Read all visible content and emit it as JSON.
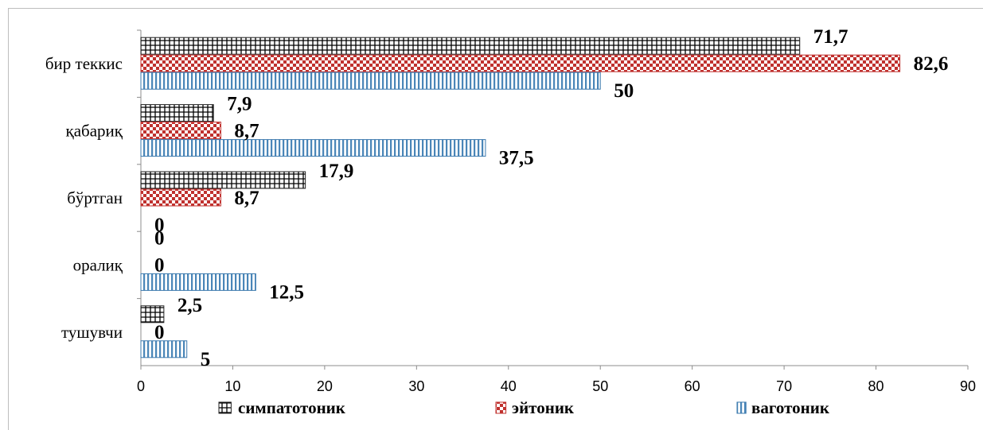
{
  "chart_data": {
    "type": "bar",
    "orientation": "horizontal",
    "categories": [
      "бир теккис",
      "қабариқ",
      "бўртган",
      "оралиқ",
      "тушувчи"
    ],
    "series": [
      {
        "name": "симпатотоник",
        "values": [
          71.7,
          7.9,
          17.9,
          0,
          2.5
        ],
        "labels": [
          "71,7",
          "7,9",
          "17,9",
          "0",
          "2,5"
        ],
        "color": "#000000",
        "pattern": "grid"
      },
      {
        "name": "эйтоник",
        "values": [
          82.6,
          8.7,
          8.7,
          0,
          0
        ],
        "labels": [
          "82,6",
          "8,7",
          "8,7",
          "0",
          "0"
        ],
        "color": "#c0312e",
        "pattern": "checker"
      },
      {
        "name": "ваготоник",
        "values": [
          50,
          37.5,
          0,
          12.5,
          5
        ],
        "labels": [
          "50",
          "37,5",
          "0",
          "12,5",
          "5"
        ],
        "color": "#4a86b8",
        "pattern": "vertical-lines"
      }
    ],
    "xlim": [
      0,
      90
    ],
    "xticks": [
      "0",
      "10",
      "20",
      "30",
      "40",
      "50",
      "60",
      "70",
      "80",
      "90"
    ],
    "grid": false,
    "legend_position": "bottom"
  }
}
